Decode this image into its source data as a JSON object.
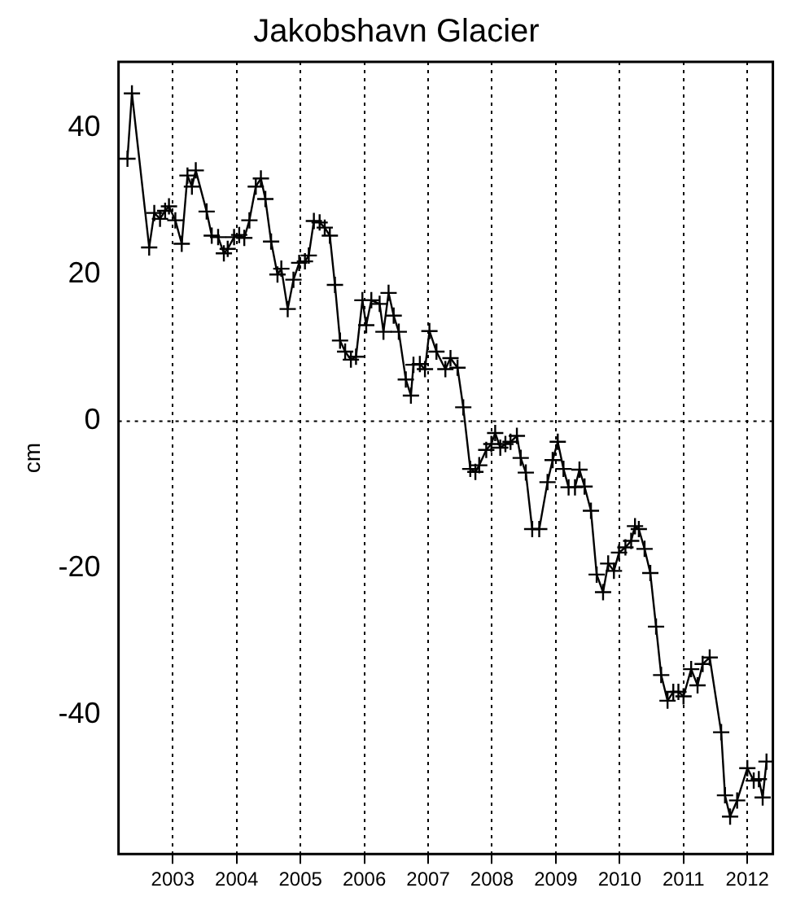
{
  "chart_data": {
    "type": "line",
    "title": "Jakobshavn Glacier",
    "ylabel": "cm",
    "xlim": [
      2002.15,
      2012.4
    ],
    "xticks": [
      2003,
      2004,
      2005,
      2006,
      2007,
      2008,
      2009,
      2010,
      2011,
      2012
    ],
    "ylim": [
      -59,
      49
    ],
    "yticks": [
      -40,
      -20,
      0,
      20,
      40
    ],
    "grid": "x",
    "marker": "cross",
    "line_style": "solid",
    "ref_lines": [
      {
        "axis": "y",
        "value": 0,
        "line_style": "dotted"
      }
    ],
    "series": [
      {
        "color": "#000000",
        "x": [
          2002.29,
          2002.36,
          2002.63,
          2002.71,
          2002.8,
          2002.88,
          2002.94,
          2003.04,
          2003.14,
          2003.23,
          2003.3,
          2003.36,
          2003.53,
          2003.61,
          2003.71,
          2003.8,
          2003.86,
          2003.96,
          2004.04,
          2004.12,
          2004.2,
          2004.3,
          2004.38,
          2004.45,
          2004.54,
          2004.64,
          2004.7,
          2004.8,
          2004.89,
          2004.98,
          2005.07,
          2005.13,
          2005.21,
          2005.3,
          2005.38,
          2005.46,
          2005.54,
          2005.62,
          2005.7,
          2005.79,
          2005.87,
          2005.97,
          2006.03,
          2006.11,
          2006.24,
          2006.3,
          2006.38,
          2006.46,
          2006.54,
          2006.65,
          2006.73,
          2006.77,
          2006.87,
          2006.95,
          2007.02,
          2007.13,
          2007.27,
          2007.35,
          2007.46,
          2007.55,
          2007.66,
          2007.74,
          2007.8,
          2007.91,
          2007.99,
          2008.05,
          2008.13,
          2008.21,
          2008.29,
          2008.39,
          2008.45,
          2008.53,
          2008.63,
          2008.74,
          2008.87,
          2008.95,
          2009.03,
          2009.12,
          2009.2,
          2009.3,
          2009.37,
          2009.45,
          2009.55,
          2009.64,
          2009.74,
          2009.82,
          2009.91,
          2009.99,
          2010.09,
          2010.18,
          2010.24,
          2010.3,
          2010.39,
          2010.48,
          2010.57,
          2010.65,
          2010.75,
          2010.84,
          2010.92,
          2011.0,
          2011.12,
          2011.22,
          2011.3,
          2011.41,
          2011.59,
          2011.65,
          2011.73,
          2011.84,
          2012.0,
          2012.1,
          2012.18,
          2012.24,
          2012.3
        ],
        "values": [
          35.8,
          44.7,
          23.7,
          28.4,
          27.6,
          28.7,
          29.3,
          27.4,
          24.2,
          33.5,
          32,
          34.2,
          28.6,
          25.3,
          25.1,
          22.9,
          23.5,
          25.1,
          25.4,
          25,
          27.4,
          32,
          33.1,
          30.3,
          24.5,
          20,
          20.8,
          15.3,
          19.3,
          21.6,
          21.8,
          22.6,
          27.3,
          27.1,
          26.4,
          25.3,
          18.6,
          11,
          9.5,
          8.4,
          8.8,
          16.5,
          13.1,
          16.5,
          16,
          12.2,
          17.5,
          14.4,
          12.2,
          5.7,
          3.5,
          7.7,
          7.8,
          7.1,
          12.3,
          9.5,
          7.1,
          8.6,
          7.3,
          1.9,
          -6.5,
          -6.9,
          -6,
          -3.9,
          -3.1,
          -1.6,
          -3.6,
          -3.1,
          -2.8,
          -2,
          -5,
          -7,
          -14.7,
          -14.7,
          -8.3,
          -5.3,
          -2.8,
          -6.5,
          -9,
          -9,
          -6.6,
          -8.9,
          -12.2,
          -20.9,
          -23.3,
          -19.4,
          -20.4,
          -17.9,
          -17.2,
          -16.3,
          -14.3,
          -14.7,
          -17.4,
          -20.7,
          -28,
          -34.6,
          -38.1,
          -36.9,
          -36.9,
          -37.5,
          -33.8,
          -36,
          -33.1,
          -32.2,
          -42.4,
          -51,
          -53.9,
          -51.7,
          -47.3,
          -49,
          -48.8,
          -51.3,
          -46.4
        ]
      }
    ]
  }
}
